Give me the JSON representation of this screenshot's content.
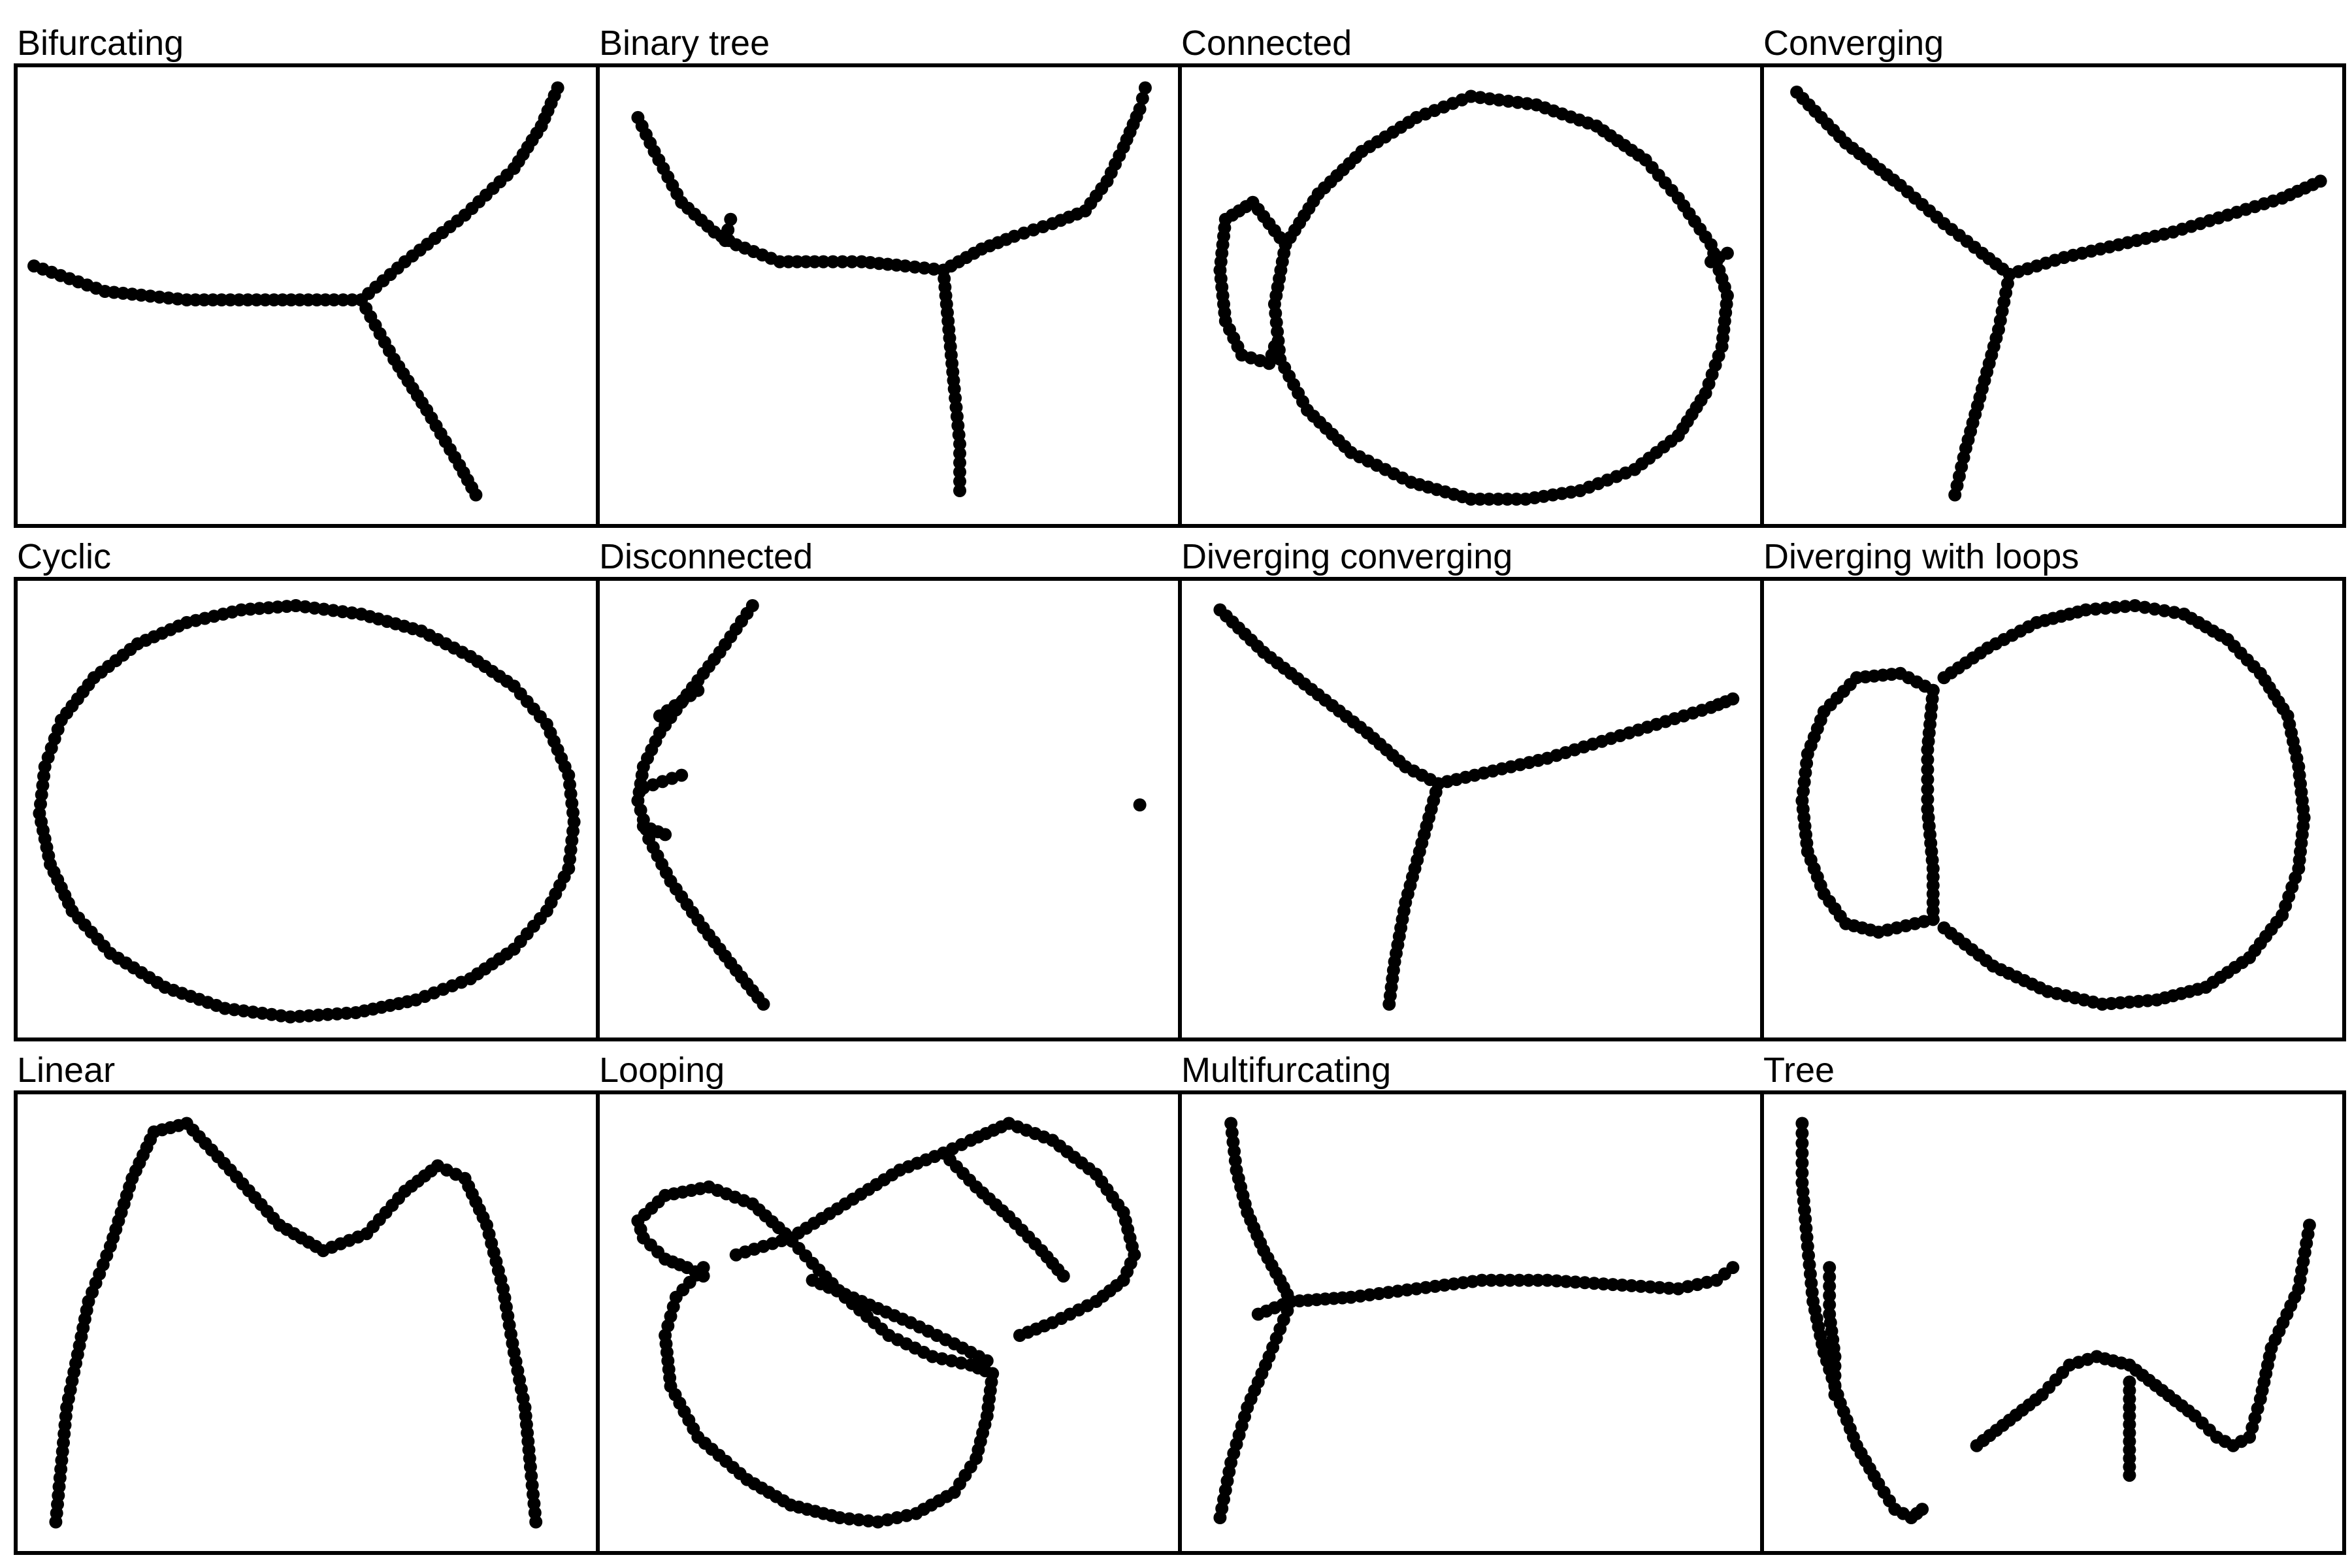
{
  "chart_data": [
    {
      "type": "scatter",
      "title": "Bifurcating",
      "series": [
        {
          "x": [
            0,
            0.13,
            0.28,
            0.44,
            0.55,
            0.6
          ],
          "y": [
            0.57,
            0.51,
            0.49,
            0.49,
            0.49,
            0.49
          ]
        },
        {
          "x": [
            0.6,
            0.68,
            0.79,
            0.88,
            0.93,
            0.96
          ],
          "y": [
            0.49,
            0.58,
            0.69,
            0.8,
            0.9,
            0.99
          ]
        },
        {
          "x": [
            0.6,
            0.66,
            0.72,
            0.78,
            0.81
          ],
          "y": [
            0.49,
            0.35,
            0.23,
            0.1,
            0.03
          ]
        }
      ]
    },
    {
      "type": "scatter",
      "title": "Binary tree",
      "series": [
        {
          "x": [
            0.04,
            0.07,
            0.12,
            0.18,
            0.22,
            0.3,
            0.38,
            0.45,
            0.53,
            0.6
          ],
          "y": [
            0.92,
            0.84,
            0.72,
            0.65,
            0.62,
            0.58,
            0.58,
            0.58,
            0.57,
            0.56
          ]
        },
        {
          "x": [
            0.6,
            0.67,
            0.73,
            0.8,
            0.86,
            0.9,
            0.93,
            0.96,
            0.97
          ],
          "y": [
            0.56,
            0.61,
            0.64,
            0.67,
            0.7,
            0.77,
            0.85,
            0.94,
            0.99
          ]
        },
        {
          "x": [
            0.6,
            0.61,
            0.62,
            0.63,
            0.63
          ],
          "y": [
            0.56,
            0.42,
            0.28,
            0.15,
            0.04
          ]
        },
        {
          "x": [
            0.2,
            0.21
          ],
          "y": [
            0.63,
            0.68
          ]
        }
      ]
    },
    {
      "type": "scatter",
      "title": "Connected",
      "series": [
        {
          "x": [
            0.5,
            0.62,
            0.73,
            0.82,
            0.88,
            0.94,
            0.97,
            0.96,
            0.93,
            0.88,
            0.8,
            0.7,
            0.6,
            0.5,
            0.39,
            0.28,
            0.2,
            0.15,
            0.14,
            0.16,
            0.22,
            0.3,
            0.4,
            0.5
          ],
          "y": [
            0.97,
            0.95,
            0.9,
            0.82,
            0.73,
            0.62,
            0.5,
            0.38,
            0.27,
            0.17,
            0.09,
            0.04,
            0.02,
            0.02,
            0.06,
            0.13,
            0.23,
            0.35,
            0.48,
            0.62,
            0.74,
            0.84,
            0.92,
            0.97
          ]
        },
        {
          "x": [
            0.16,
            0.1,
            0.05,
            0.04,
            0.05,
            0.08,
            0.13,
            0.14
          ],
          "y": [
            0.62,
            0.72,
            0.68,
            0.56,
            0.44,
            0.36,
            0.34,
            0.38
          ]
        },
        {
          "x": [
            0.94,
            0.97
          ],
          "y": [
            0.58,
            0.6
          ]
        }
      ]
    },
    {
      "type": "scatter",
      "title": "Converging",
      "series": [
        {
          "x": [
            0.03,
            0.12,
            0.22,
            0.3,
            0.37,
            0.42
          ],
          "y": [
            0.98,
            0.86,
            0.76,
            0.67,
            0.6,
            0.55
          ]
        },
        {
          "x": [
            0.42,
            0.52,
            0.62,
            0.72,
            0.82,
            0.92,
            0.99
          ],
          "y": [
            0.55,
            0.59,
            0.62,
            0.65,
            0.69,
            0.73,
            0.77
          ]
        },
        {
          "x": [
            0.42,
            0.4,
            0.37,
            0.34,
            0.32
          ],
          "y": [
            0.55,
            0.42,
            0.28,
            0.14,
            0.03
          ]
        }
      ]
    },
    {
      "type": "scatter",
      "title": "Cyclic",
      "series": [
        {
          "x": [
            0.48,
            0.6,
            0.71,
            0.8,
            0.88,
            0.94,
            0.98,
            0.99,
            0.98,
            0.94,
            0.88,
            0.8,
            0.7,
            0.59,
            0.47,
            0.35,
            0.24,
            0.14,
            0.07,
            0.03,
            0.01,
            0.02,
            0.05,
            0.11,
            0.19,
            0.28,
            0.38,
            0.48
          ],
          "y": [
            0.98,
            0.96,
            0.92,
            0.86,
            0.79,
            0.7,
            0.58,
            0.47,
            0.36,
            0.26,
            0.17,
            0.1,
            0.05,
            0.02,
            0.01,
            0.03,
            0.08,
            0.16,
            0.26,
            0.37,
            0.49,
            0.6,
            0.71,
            0.81,
            0.89,
            0.94,
            0.97,
            0.98
          ]
        }
      ]
    },
    {
      "type": "scatter",
      "title": "Disconnected",
      "series": [
        {
          "x": [
            0.25,
            0.19,
            0.13,
            0.08,
            0.05,
            0.04,
            0.06,
            0.1,
            0.16,
            0.22,
            0.27
          ],
          "y": [
            0.98,
            0.87,
            0.77,
            0.68,
            0.6,
            0.52,
            0.43,
            0.33,
            0.22,
            0.12,
            0.04
          ]
        },
        {
          "x": [
            0.08,
            0.15
          ],
          "y": [
            0.72,
            0.78
          ]
        },
        {
          "x": [
            0.05,
            0.12
          ],
          "y": [
            0.55,
            0.58
          ]
        },
        {
          "x": [
            0.05,
            0.09
          ],
          "y": [
            0.46,
            0.44
          ]
        },
        {
          "x": [
            0.96
          ],
          "y": [
            0.51
          ]
        }
      ]
    },
    {
      "type": "scatter",
      "title": "Diverging converging",
      "series": [
        {
          "x": [
            0.04,
            0.12,
            0.22,
            0.31,
            0.38,
            0.44
          ],
          "y": [
            0.97,
            0.87,
            0.77,
            0.68,
            0.6,
            0.56
          ]
        },
        {
          "x": [
            0.44,
            0.54,
            0.64,
            0.74,
            0.84,
            0.94,
            0.98
          ],
          "y": [
            0.56,
            0.59,
            0.62,
            0.66,
            0.7,
            0.74,
            0.76
          ]
        },
        {
          "x": [
            0.44,
            0.41,
            0.38,
            0.36,
            0.35
          ],
          "y": [
            0.56,
            0.42,
            0.28,
            0.14,
            0.04
          ]
        }
      ]
    },
    {
      "type": "scatter",
      "title": "Diverging with loops",
      "series": [
        {
          "x": [
            0.3,
            0.38,
            0.47,
            0.56,
            0.65,
            0.74,
            0.82,
            0.88,
            0.93,
            0.95,
            0.96,
            0.95,
            0.92,
            0.86,
            0.78,
            0.69,
            0.59,
            0.49,
            0.39,
            0.3
          ],
          "y": [
            0.81,
            0.88,
            0.94,
            0.97,
            0.98,
            0.96,
            0.9,
            0.82,
            0.72,
            0.6,
            0.48,
            0.36,
            0.25,
            0.15,
            0.08,
            0.05,
            0.04,
            0.07,
            0.13,
            0.22
          ]
        },
        {
          "x": [
            0.28,
            0.27,
            0.27,
            0.28,
            0.28
          ],
          "y": [
            0.78,
            0.64,
            0.5,
            0.36,
            0.24
          ]
        },
        {
          "x": [
            0.28,
            0.18,
            0.12,
            0.08,
            0.05,
            0.04,
            0.05,
            0.08,
            0.14,
            0.22,
            0.28
          ],
          "y": [
            0.24,
            0.21,
            0.23,
            0.3,
            0.4,
            0.52,
            0.63,
            0.73,
            0.81,
            0.82,
            0.78
          ]
        }
      ]
    },
    {
      "type": "scatter",
      "title": "Linear",
      "series": [
        {
          "x": [
            0.04,
            0.06,
            0.1,
            0.14,
            0.18,
            0.22,
            0.28,
            0.36,
            0.45,
            0.53,
            0.61,
            0.68,
            0.74,
            0.79,
            0.83,
            0.86,
            0.88,
            0.9,
            0.91,
            0.92
          ],
          "y": [
            0.03,
            0.3,
            0.55,
            0.68,
            0.84,
            0.95,
            0.97,
            0.86,
            0.73,
            0.67,
            0.71,
            0.81,
            0.87,
            0.84,
            0.73,
            0.58,
            0.43,
            0.3,
            0.16,
            0.03
          ]
        }
      ]
    },
    {
      "type": "scatter",
      "title": "Looping",
      "series": [
        {
          "x": [
            0.04,
            0.09,
            0.17,
            0.25,
            0.31,
            0.36,
            0.42,
            0.5,
            0.58,
            0.65,
            0.69,
            0.68,
            0.66,
            0.62,
            0.55,
            0.48,
            0.41,
            0.32,
            0.24,
            0.15,
            0.1,
            0.09,
            0.11,
            0.16
          ],
          "y": [
            0.74,
            0.8,
            0.82,
            0.78,
            0.71,
            0.64,
            0.56,
            0.47,
            0.42,
            0.4,
            0.38,
            0.28,
            0.18,
            0.1,
            0.05,
            0.03,
            0.04,
            0.07,
            0.13,
            0.23,
            0.35,
            0.47,
            0.56,
            0.63
          ]
        },
        {
          "x": [
            0.04,
            0.05,
            0.09,
            0.13,
            0.16
          ],
          "y": [
            0.74,
            0.7,
            0.65,
            0.63,
            0.61
          ]
        },
        {
          "x": [
            0.22,
            0.32,
            0.42,
            0.52,
            0.6,
            0.65,
            0.72,
            0.8,
            0.88,
            0.93,
            0.95,
            0.93,
            0.88,
            0.8,
            0.74
          ],
          "y": [
            0.66,
            0.7,
            0.78,
            0.86,
            0.9,
            0.93,
            0.97,
            0.93,
            0.85,
            0.76,
            0.66,
            0.6,
            0.55,
            0.5,
            0.47
          ]
        },
        {
          "x": [
            0.36,
            0.45,
            0.54,
            0.62,
            0.68
          ],
          "y": [
            0.6,
            0.55,
            0.5,
            0.45,
            0.41
          ]
        },
        {
          "x": [
            0.6,
            0.66,
            0.72,
            0.78,
            0.82
          ],
          "y": [
            0.9,
            0.82,
            0.75,
            0.67,
            0.61
          ]
        }
      ]
    },
    {
      "type": "scatter",
      "title": "Multifurcating",
      "series": [
        {
          "x": [
            0.06,
            0.07,
            0.09,
            0.12,
            0.15,
            0.17
          ],
          "y": [
            0.97,
            0.86,
            0.76,
            0.67,
            0.6,
            0.55
          ]
        },
        {
          "x": [
            0.17,
            0.28,
            0.4,
            0.52,
            0.64,
            0.76,
            0.88,
            0.95,
            0.98
          ],
          "y": [
            0.55,
            0.56,
            0.58,
            0.6,
            0.6,
            0.59,
            0.58,
            0.6,
            0.63
          ]
        },
        {
          "x": [
            0.17,
            0.13,
            0.09,
            0.06,
            0.04
          ],
          "y": [
            0.55,
            0.42,
            0.3,
            0.17,
            0.04
          ]
        },
        {
          "x": [
            0.11,
            0.17
          ],
          "y": [
            0.52,
            0.55
          ]
        }
      ]
    },
    {
      "type": "scatter",
      "title": "Tree",
      "series": [
        {
          "x": [
            0.04,
            0.04,
            0.05,
            0.06,
            0.08,
            0.11,
            0.14,
            0.18,
            0.21,
            0.24,
            0.26
          ],
          "y": [
            0.97,
            0.83,
            0.68,
            0.55,
            0.43,
            0.31,
            0.21,
            0.12,
            0.06,
            0.04,
            0.06
          ]
        },
        {
          "x": [
            0.09,
            0.09,
            0.1,
            0.1
          ],
          "y": [
            0.63,
            0.52,
            0.42,
            0.33
          ]
        },
        {
          "x": [
            0.36,
            0.42,
            0.48,
            0.53,
            0.58,
            0.64,
            0.7,
            0.76,
            0.8,
            0.83,
            0.86,
            0.88,
            0.9,
            0.95,
            0.97
          ],
          "y": [
            0.21,
            0.27,
            0.33,
            0.4,
            0.42,
            0.4,
            0.34,
            0.28,
            0.23,
            0.21,
            0.23,
            0.32,
            0.44,
            0.58,
            0.73
          ]
        },
        {
          "x": [
            0.64,
            0.64,
            0.64,
            0.64
          ],
          "y": [
            0.36,
            0.28,
            0.2,
            0.14
          ]
        }
      ]
    }
  ]
}
